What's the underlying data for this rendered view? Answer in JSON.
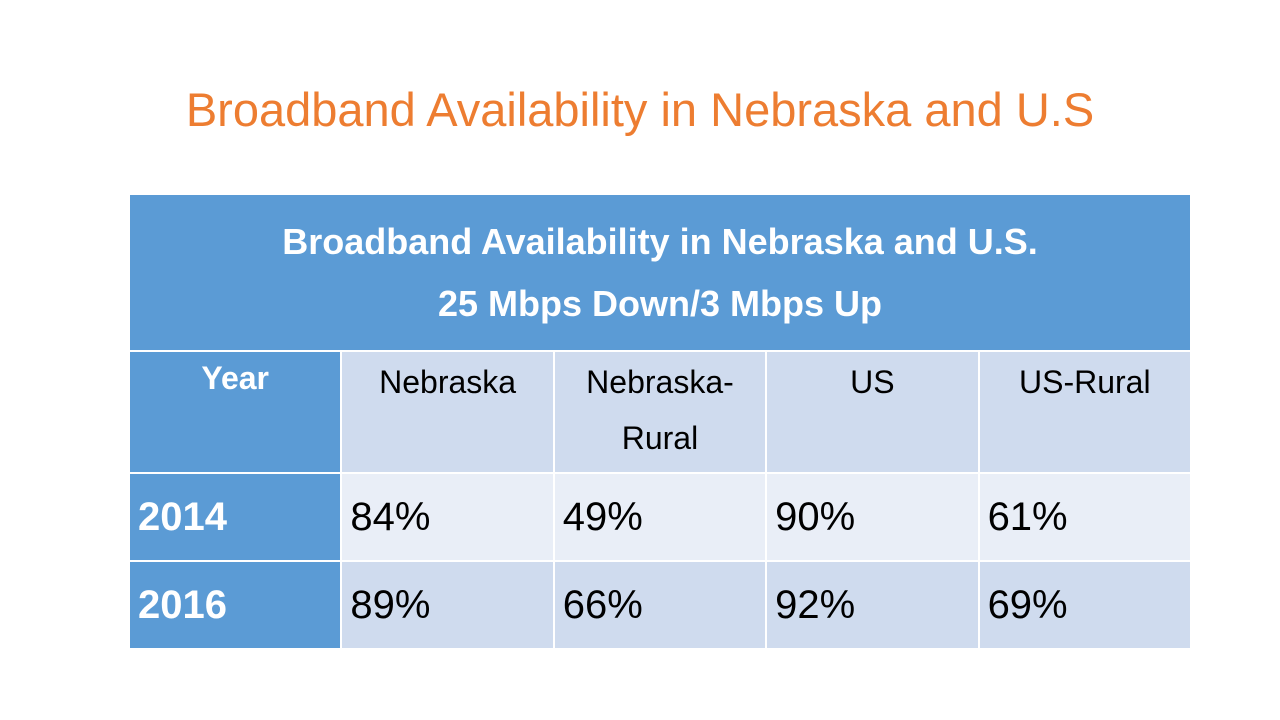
{
  "slide": {
    "title": "Broadband Availability in Nebraska and U.S",
    "title_color": "#ED7D31"
  },
  "table": {
    "header_line1": "Broadband Availability in Nebraska and U.S.",
    "header_line2": "25 Mbps Down/3 Mbps Up",
    "columns": [
      "Year",
      "Nebraska",
      "Nebraska-Rural",
      "US",
      "US-Rural"
    ],
    "rows": [
      {
        "year": "2014",
        "values": [
          "84%",
          "49%",
          "90%",
          "61%"
        ]
      },
      {
        "year": "2016",
        "values": [
          "89%",
          "66%",
          "92%",
          "69%"
        ]
      }
    ],
    "colors": {
      "header_fill": "#5B9BD5",
      "band_light": "#E9EEF7",
      "band_dark": "#CFDBEE"
    }
  }
}
